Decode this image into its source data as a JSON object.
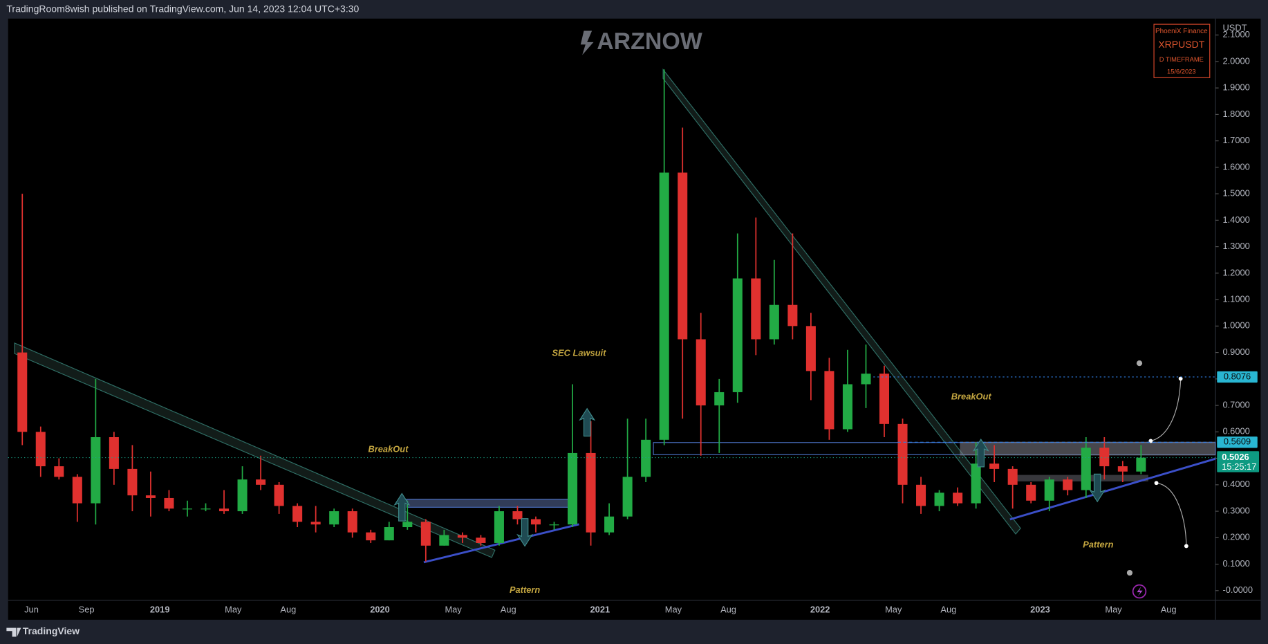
{
  "header": "TradingRoom8wish published on TradingView.com, Jun 14, 2023 12:04 UTC+3:30",
  "watermark": "ARZNOW",
  "info_box": {
    "brand": "PhoeniX Finance",
    "symbol": "XRPUSDT",
    "timeframe": "D TIMEFRAME",
    "date": "15/6/2023"
  },
  "footer": "TradingView",
  "chart_data": {
    "type": "candlestick",
    "currency": "USDT",
    "up_color": "#22ab45",
    "down_color": "#e0312f",
    "categories": [
      null,
      "Jun",
      null,
      null,
      "Sep",
      null,
      null,
      null,
      "2019",
      null,
      null,
      null,
      "May",
      null,
      null,
      "Aug",
      null,
      null,
      null,
      null,
      "2020",
      null,
      null,
      null,
      "May",
      null,
      null,
      "Aug",
      null,
      null,
      null,
      null,
      "2021",
      null,
      null,
      null,
      "May",
      null,
      null,
      "Aug",
      null,
      null,
      null,
      null,
      "2022",
      null,
      null,
      null,
      "May",
      null,
      null,
      "Aug",
      null,
      null,
      null,
      null,
      "2023",
      null,
      null,
      null,
      "May",
      null,
      null,
      "Aug",
      null
    ],
    "open": [
      0.9,
      0.6,
      0.47,
      0.43,
      0.33,
      0.58,
      0.46,
      0.36,
      0.35,
      0.31,
      0.31,
      0.31,
      0.3,
      0.42,
      0.4,
      0.32,
      0.26,
      0.25,
      0.3,
      0.22,
      0.19,
      0.24,
      0.26,
      0.17,
      0.21,
      0.2,
      0.18,
      0.3,
      0.27,
      0.25,
      0.25,
      0.52,
      0.22,
      0.28,
      0.43,
      0.57,
      1.58,
      0.95,
      0.7,
      0.75,
      1.18,
      0.95,
      1.08,
      1.0,
      0.83,
      0.61,
      0.78,
      0.82,
      0.63,
      0.4,
      0.32,
      0.37,
      0.33,
      0.48,
      0.46,
      0.4,
      0.34,
      0.42,
      0.38,
      0.54,
      0.47,
      0.45,
      null,
      null,
      null
    ],
    "high": [
      1.5,
      0.62,
      0.5,
      0.44,
      0.8,
      0.6,
      0.55,
      0.45,
      0.38,
      0.34,
      0.33,
      0.38,
      0.47,
      0.51,
      0.41,
      0.33,
      0.32,
      0.31,
      0.31,
      0.23,
      0.26,
      0.34,
      0.27,
      0.23,
      0.22,
      0.21,
      0.32,
      0.32,
      0.28,
      0.26,
      0.78,
      0.64,
      0.33,
      0.65,
      0.65,
      1.97,
      1.75,
      1.05,
      0.8,
      1.35,
      1.41,
      1.25,
      1.35,
      1.05,
      0.88,
      0.91,
      0.93,
      0.85,
      0.65,
      0.43,
      0.38,
      0.39,
      0.56,
      0.55,
      0.47,
      0.41,
      0.43,
      0.43,
      0.58,
      0.58,
      0.49,
      0.55,
      null,
      null,
      null
    ],
    "low": [
      0.55,
      0.43,
      0.42,
      0.26,
      0.25,
      0.4,
      0.3,
      0.28,
      0.3,
      0.28,
      0.3,
      0.29,
      0.29,
      0.38,
      0.29,
      0.24,
      0.22,
      0.24,
      0.2,
      0.18,
      0.19,
      0.23,
      0.11,
      0.17,
      0.18,
      0.17,
      0.17,
      0.25,
      0.22,
      0.23,
      0.24,
      0.17,
      0.21,
      0.27,
      0.41,
      0.55,
      0.65,
      0.51,
      0.52,
      0.71,
      0.89,
      0.93,
      0.95,
      0.72,
      0.57,
      0.6,
      0.69,
      0.58,
      0.33,
      0.29,
      0.3,
      0.32,
      0.31,
      0.41,
      0.31,
      0.33,
      0.3,
      0.36,
      0.35,
      0.42,
      0.41,
      0.44,
      null,
      null,
      null
    ],
    "close": [
      0.6,
      0.47,
      0.43,
      0.33,
      0.58,
      0.46,
      0.36,
      0.35,
      0.31,
      0.31,
      0.31,
      0.3,
      0.42,
      0.4,
      0.32,
      0.26,
      0.25,
      0.3,
      0.22,
      0.19,
      0.24,
      0.26,
      0.17,
      0.21,
      0.2,
      0.18,
      0.3,
      0.27,
      0.25,
      0.25,
      0.52,
      0.22,
      0.28,
      0.43,
      0.57,
      1.58,
      0.95,
      0.7,
      0.75,
      1.18,
      0.95,
      1.08,
      1.0,
      0.83,
      0.61,
      0.78,
      0.82,
      0.63,
      0.4,
      0.32,
      0.37,
      0.33,
      0.48,
      0.46,
      0.4,
      0.34,
      0.42,
      0.38,
      0.54,
      0.47,
      0.45,
      0.5026,
      null,
      null,
      null
    ],
    "ylim": [
      -0.0367,
      2.1621
    ],
    "yticks": [
      {
        "value": 0,
        "label": "-0.0000"
      },
      {
        "value": 0.1,
        "label": "0.1000"
      },
      {
        "value": 0.2,
        "label": "0.2000"
      },
      {
        "value": 0.3,
        "label": "0.3000"
      },
      {
        "value": 0.4,
        "label": "0.4000"
      },
      {
        "value": 0.5,
        "label": "0.5000"
      },
      {
        "value": 0.6,
        "label": "0.6000"
      },
      {
        "value": 0.7,
        "label": "0.7000"
      },
      {
        "value": 0.8,
        "label": "0.8000"
      },
      {
        "value": 0.9,
        "label": "0.9000"
      },
      {
        "value": 1,
        "label": "1.0000"
      },
      {
        "value": 1.1,
        "label": "1.1000"
      },
      {
        "value": 1.2,
        "label": "1.2000"
      },
      {
        "value": 1.3,
        "label": "1.3000"
      },
      {
        "value": 1.4,
        "label": "1.4000"
      },
      {
        "value": 1.5,
        "label": "1.5000"
      },
      {
        "value": 1.6,
        "label": "1.6000"
      },
      {
        "value": 1.7,
        "label": "1.7000"
      },
      {
        "value": 1.8,
        "label": "1.8000"
      },
      {
        "value": 1.9,
        "label": "1.9000"
      },
      {
        "value": 2,
        "label": "2.0000"
      },
      {
        "value": 2.1,
        "label": "2.1000"
      }
    ],
    "levels": [
      0.8076,
      0.5609
    ],
    "countdown": "15:25:17",
    "annotations": [
      "BreakOut",
      "Pattern",
      "SEC Lawsuit",
      "BreakOut",
      "Pattern"
    ]
  }
}
